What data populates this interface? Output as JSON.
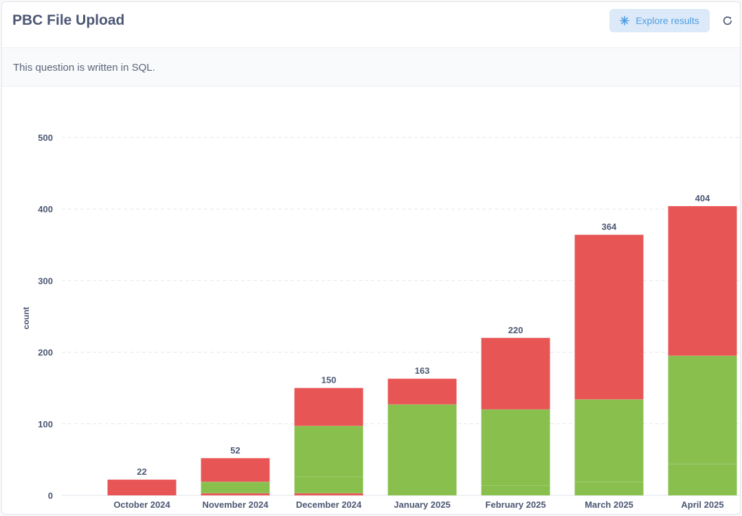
{
  "header": {
    "title": "PBC File Upload",
    "explore_label": "Explore results",
    "explore_icon": "sparkle-icon",
    "refresh_icon": "refresh-icon"
  },
  "notice": {
    "text": "This question is written in SQL."
  },
  "colors": {
    "green": "#88bf4d",
    "red": "#e85555",
    "text": "#4c5773",
    "accent": "#509ee3"
  },
  "chart_data": {
    "type": "bar",
    "stacked": true,
    "categories": [
      "October 2024",
      "November 2024",
      "December 2024",
      "January 2025",
      "February 2025",
      "March 2025",
      "April 2025"
    ],
    "series": [
      {
        "color": "#e85555",
        "values": [
          0,
          3,
          3,
          0,
          0,
          0,
          0
        ]
      },
      {
        "color": "#88bf4d",
        "values": [
          0,
          0,
          23,
          0,
          14,
          19,
          44
        ]
      },
      {
        "color": "#88bf4d",
        "values": [
          0,
          16,
          71,
          127,
          106,
          115,
          151
        ]
      },
      {
        "color": "#e85555",
        "values": [
          22,
          33,
          53,
          36,
          100,
          230,
          209
        ]
      }
    ],
    "totals": [
      "22",
      "52",
      "150",
      "163",
      "220",
      "364",
      "404"
    ],
    "ylabel": "count",
    "xlabel": "",
    "ylim": [
      0,
      500
    ],
    "yticks": [
      "0",
      "100",
      "200",
      "300",
      "400",
      "500"
    ],
    "grid": true,
    "legend": "none"
  }
}
